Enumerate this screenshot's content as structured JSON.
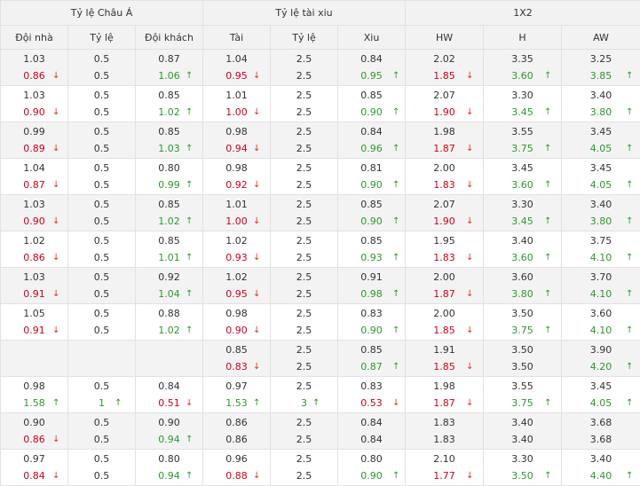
{
  "colors": {
    "down": "#d0021b",
    "up": "#2c9a2c",
    "header_bg": "#f2f2f2",
    "gray_row": "#f3f3f3"
  },
  "groups": [
    {
      "label": "Tỷ lệ Châu Á",
      "span": 3
    },
    {
      "label": "Tỷ lệ tài xiu",
      "span": 3
    },
    {
      "label": "1X2",
      "span": 3
    }
  ],
  "columns": [
    "Đội nhà",
    "Tỷ lệ",
    "Đội khách",
    "Tài",
    "Tỷ lệ",
    "Xiu",
    "HW",
    "H",
    "AW"
  ],
  "rows": [
    {
      "cells": [
        {
          "open": "1.03",
          "cur": "0.86",
          "dir": "down"
        },
        {
          "open": "0.5",
          "cur": "0.5",
          "dir": ""
        },
        {
          "open": "0.87",
          "cur": "1.06",
          "dir": "up"
        },
        {
          "open": "1.04",
          "cur": "0.95",
          "dir": "down"
        },
        {
          "open": "2.5",
          "cur": "2.5",
          "dir": ""
        },
        {
          "open": "0.84",
          "cur": "0.95",
          "dir": "up"
        },
        {
          "open": "2.02",
          "cur": "1.85",
          "dir": "down"
        },
        {
          "open": "3.35",
          "cur": "3.60",
          "dir": "up"
        },
        {
          "open": "3.25",
          "cur": "3.85",
          "dir": "up"
        }
      ]
    },
    {
      "cells": [
        {
          "open": "1.03",
          "cur": "0.90",
          "dir": "down"
        },
        {
          "open": "0.5",
          "cur": "0.5",
          "dir": ""
        },
        {
          "open": "0.85",
          "cur": "1.02",
          "dir": "up"
        },
        {
          "open": "1.01",
          "cur": "1.00",
          "dir": "down"
        },
        {
          "open": "2.5",
          "cur": "2.5",
          "dir": ""
        },
        {
          "open": "0.85",
          "cur": "0.90",
          "dir": "up"
        },
        {
          "open": "2.07",
          "cur": "1.90",
          "dir": "down"
        },
        {
          "open": "3.30",
          "cur": "3.45",
          "dir": "up"
        },
        {
          "open": "3.40",
          "cur": "3.80",
          "dir": "up"
        }
      ]
    },
    {
      "cells": [
        {
          "open": "0.99",
          "cur": "0.89",
          "dir": "down"
        },
        {
          "open": "0.5",
          "cur": "0.5",
          "dir": ""
        },
        {
          "open": "0.85",
          "cur": "1.03",
          "dir": "up"
        },
        {
          "open": "0.98",
          "cur": "0.94",
          "dir": "down"
        },
        {
          "open": "2.5",
          "cur": "2.5",
          "dir": ""
        },
        {
          "open": "0.84",
          "cur": "0.96",
          "dir": "up"
        },
        {
          "open": "1.98",
          "cur": "1.87",
          "dir": "down"
        },
        {
          "open": "3.55",
          "cur": "3.75",
          "dir": "up"
        },
        {
          "open": "3.45",
          "cur": "4.05",
          "dir": "up"
        }
      ]
    },
    {
      "cells": [
        {
          "open": "1.04",
          "cur": "0.87",
          "dir": "down"
        },
        {
          "open": "0.5",
          "cur": "0.5",
          "dir": ""
        },
        {
          "open": "0.80",
          "cur": "0.99",
          "dir": "up"
        },
        {
          "open": "0.98",
          "cur": "0.92",
          "dir": "down"
        },
        {
          "open": "2.5",
          "cur": "2.5",
          "dir": ""
        },
        {
          "open": "0.81",
          "cur": "0.90",
          "dir": "up"
        },
        {
          "open": "2.00",
          "cur": "1.83",
          "dir": "down"
        },
        {
          "open": "3.45",
          "cur": "3.60",
          "dir": "up"
        },
        {
          "open": "3.45",
          "cur": "4.05",
          "dir": "up"
        }
      ]
    },
    {
      "cells": [
        {
          "open": "1.03",
          "cur": "0.90",
          "dir": "down"
        },
        {
          "open": "0.5",
          "cur": "0.5",
          "dir": ""
        },
        {
          "open": "0.85",
          "cur": "1.02",
          "dir": "up"
        },
        {
          "open": "1.01",
          "cur": "1.00",
          "dir": "down"
        },
        {
          "open": "2.5",
          "cur": "2.5",
          "dir": ""
        },
        {
          "open": "0.85",
          "cur": "0.90",
          "dir": "up"
        },
        {
          "open": "2.07",
          "cur": "1.90",
          "dir": "down"
        },
        {
          "open": "3.30",
          "cur": "3.45",
          "dir": "up"
        },
        {
          "open": "3.40",
          "cur": "3.80",
          "dir": "up"
        }
      ]
    },
    {
      "cells": [
        {
          "open": "1.02",
          "cur": "0.86",
          "dir": "down"
        },
        {
          "open": "0.5",
          "cur": "0.5",
          "dir": ""
        },
        {
          "open": "0.85",
          "cur": "1.01",
          "dir": "up"
        },
        {
          "open": "1.02",
          "cur": "0.93",
          "dir": "down"
        },
        {
          "open": "2.5",
          "cur": "2.5",
          "dir": ""
        },
        {
          "open": "0.85",
          "cur": "0.93",
          "dir": "up"
        },
        {
          "open": "1.95",
          "cur": "1.83",
          "dir": "down"
        },
        {
          "open": "3.40",
          "cur": "3.60",
          "dir": "up"
        },
        {
          "open": "3.75",
          "cur": "4.10",
          "dir": "up"
        }
      ]
    },
    {
      "cells": [
        {
          "open": "1.03",
          "cur": "0.91",
          "dir": "down"
        },
        {
          "open": "0.5",
          "cur": "0.5",
          "dir": ""
        },
        {
          "open": "0.92",
          "cur": "1.04",
          "dir": "up"
        },
        {
          "open": "1.02",
          "cur": "0.95",
          "dir": "down"
        },
        {
          "open": "2.5",
          "cur": "2.5",
          "dir": ""
        },
        {
          "open": "0.91",
          "cur": "0.98",
          "dir": "up"
        },
        {
          "open": "2.00",
          "cur": "1.87",
          "dir": "down"
        },
        {
          "open": "3.60",
          "cur": "3.80",
          "dir": "up"
        },
        {
          "open": "3.70",
          "cur": "4.10",
          "dir": "up"
        }
      ]
    },
    {
      "cells": [
        {
          "open": "1.05",
          "cur": "0.91",
          "dir": "down"
        },
        {
          "open": "0.5",
          "cur": "0.5",
          "dir": ""
        },
        {
          "open": "0.88",
          "cur": "1.02",
          "dir": "up"
        },
        {
          "open": "0.98",
          "cur": "0.90",
          "dir": "down"
        },
        {
          "open": "2.5",
          "cur": "2.5",
          "dir": ""
        },
        {
          "open": "0.83",
          "cur": "0.90",
          "dir": "up"
        },
        {
          "open": "2.00",
          "cur": "1.85",
          "dir": "down"
        },
        {
          "open": "3.50",
          "cur": "3.75",
          "dir": "up"
        },
        {
          "open": "3.60",
          "cur": "4.10",
          "dir": "up"
        }
      ]
    },
    {
      "cells": [
        {
          "open": "",
          "cur": "",
          "dir": ""
        },
        {
          "open": "",
          "cur": "",
          "dir": ""
        },
        {
          "open": "",
          "cur": "",
          "dir": ""
        },
        {
          "open": "0.85",
          "cur": "0.83",
          "dir": "down"
        },
        {
          "open": "2.5",
          "cur": "2.5",
          "dir": ""
        },
        {
          "open": "0.85",
          "cur": "0.87",
          "dir": "up"
        },
        {
          "open": "1.91",
          "cur": "1.85",
          "dir": "down"
        },
        {
          "open": "3.50",
          "cur": "3.50",
          "dir": ""
        },
        {
          "open": "3.90",
          "cur": "4.20",
          "dir": "up"
        }
      ]
    },
    {
      "cells": [
        {
          "open": "0.98",
          "cur": "1.58",
          "dir": "up"
        },
        {
          "open": "0.5",
          "cur": "1",
          "dir": "up"
        },
        {
          "open": "0.84",
          "cur": "0.51",
          "dir": "down"
        },
        {
          "open": "0.97",
          "cur": "1.53",
          "dir": "up"
        },
        {
          "open": "2.5",
          "cur": "3",
          "dir": "up"
        },
        {
          "open": "0.83",
          "cur": "0.53",
          "dir": "down"
        },
        {
          "open": "1.98",
          "cur": "1.87",
          "dir": "down"
        },
        {
          "open": "3.55",
          "cur": "3.75",
          "dir": "up"
        },
        {
          "open": "3.45",
          "cur": "4.05",
          "dir": "up"
        }
      ]
    },
    {
      "cells": [
        {
          "open": "0.90",
          "cur": "0.86",
          "dir": "down"
        },
        {
          "open": "0.5",
          "cur": "0.5",
          "dir": ""
        },
        {
          "open": "0.90",
          "cur": "0.94",
          "dir": "up"
        },
        {
          "open": "0.86",
          "cur": "0.86",
          "dir": ""
        },
        {
          "open": "2.5",
          "cur": "2.5",
          "dir": ""
        },
        {
          "open": "0.84",
          "cur": "0.84",
          "dir": ""
        },
        {
          "open": "1.83",
          "cur": "1.83",
          "dir": ""
        },
        {
          "open": "3.40",
          "cur": "3.40",
          "dir": ""
        },
        {
          "open": "3.68",
          "cur": "3.68",
          "dir": ""
        }
      ]
    },
    {
      "cells": [
        {
          "open": "0.97",
          "cur": "0.84",
          "dir": "down"
        },
        {
          "open": "0.5",
          "cur": "0.5",
          "dir": ""
        },
        {
          "open": "0.80",
          "cur": "0.94",
          "dir": "up"
        },
        {
          "open": "0.96",
          "cur": "0.88",
          "dir": "down"
        },
        {
          "open": "2.5",
          "cur": "2.5",
          "dir": ""
        },
        {
          "open": "0.80",
          "cur": "0.90",
          "dir": "up"
        },
        {
          "open": "2.10",
          "cur": "1.77",
          "dir": "down"
        },
        {
          "open": "3.30",
          "cur": "3.50",
          "dir": "up"
        },
        {
          "open": "3.40",
          "cur": "4.40",
          "dir": "up"
        }
      ]
    }
  ]
}
